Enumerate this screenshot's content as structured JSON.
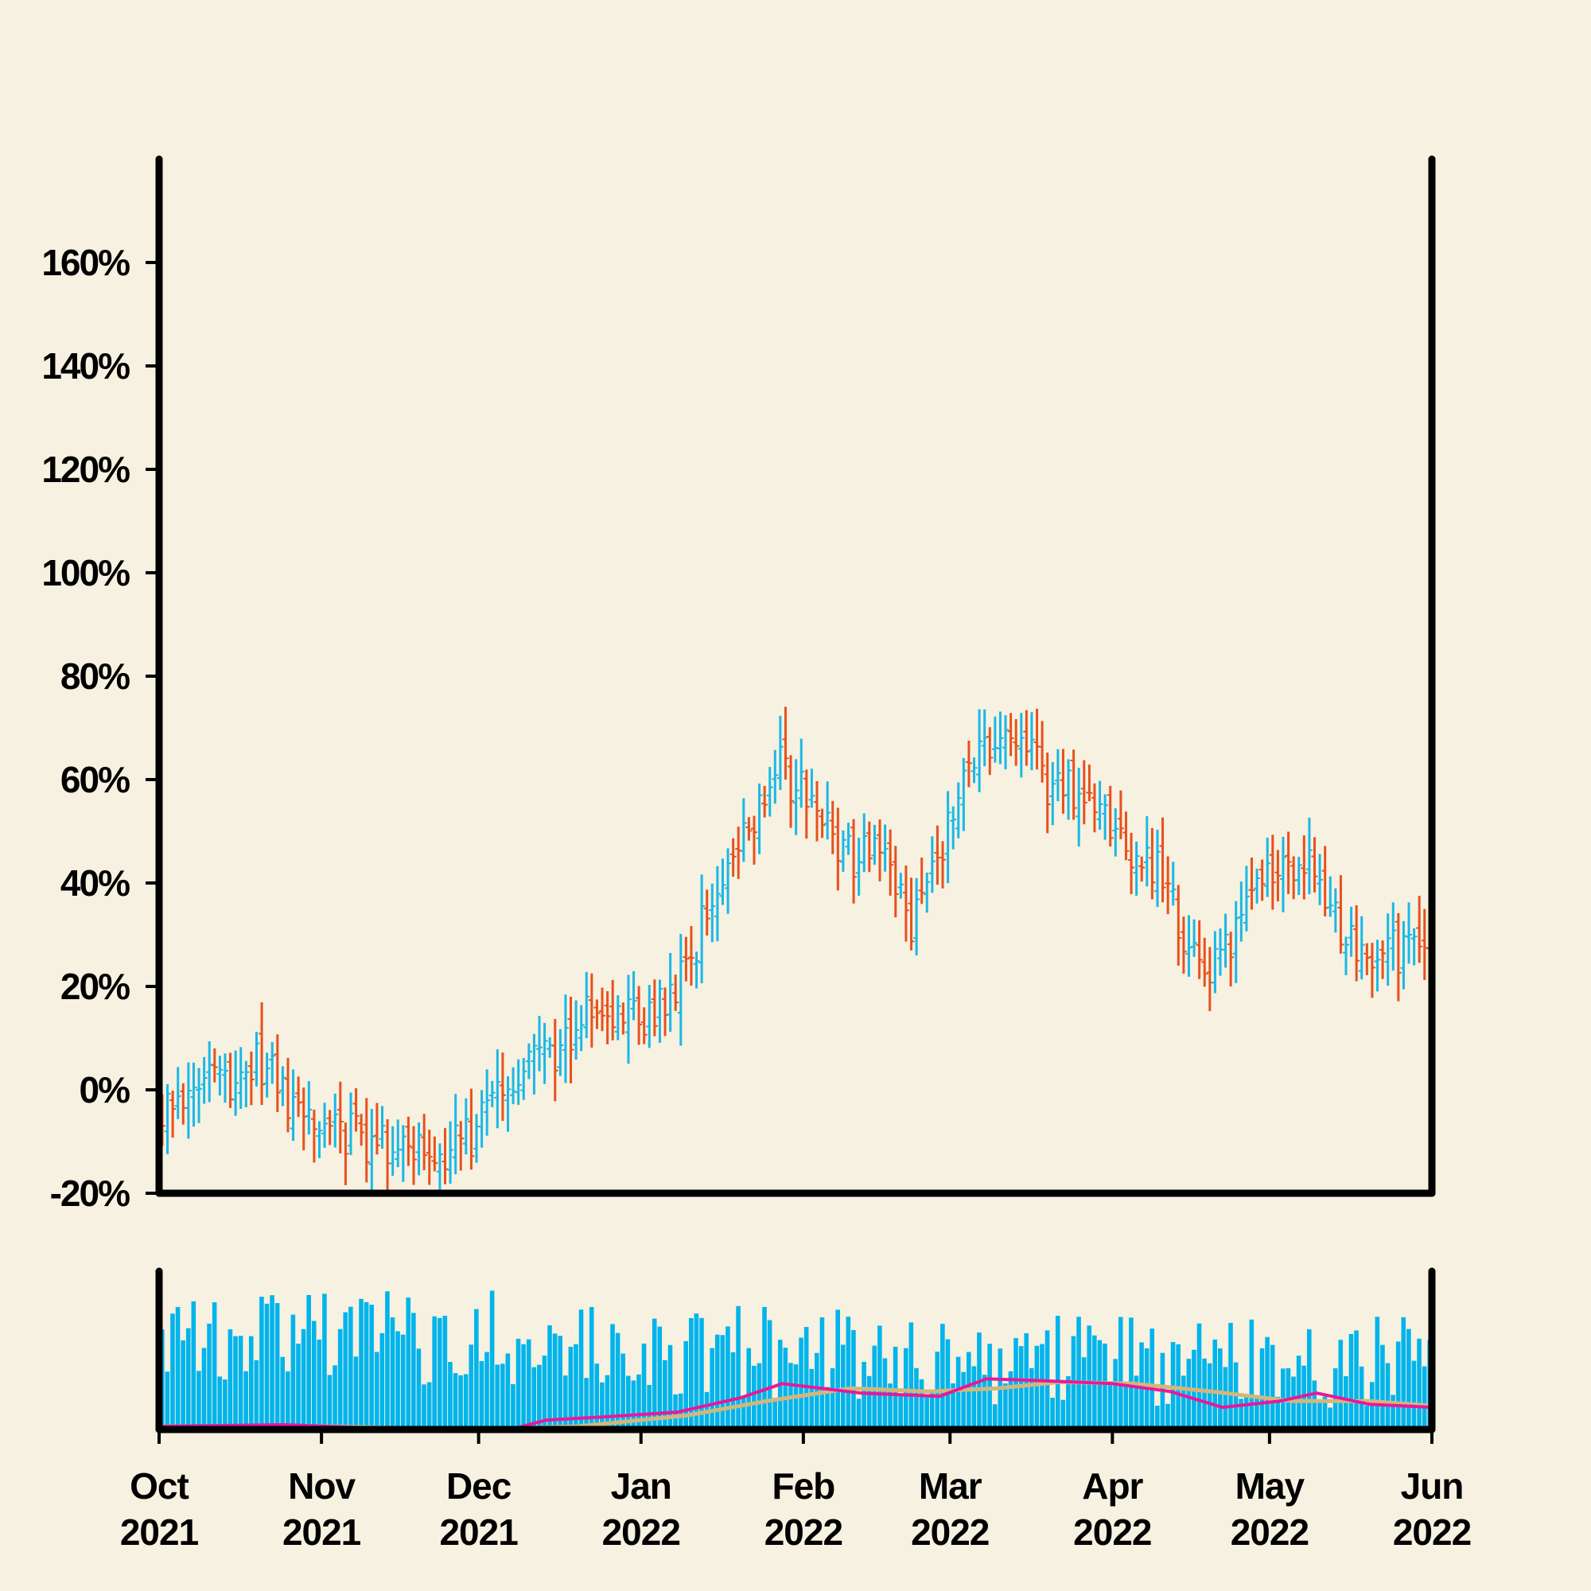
{
  "chart_data": {
    "type": "ohlc",
    "title": "",
    "xlabel": "",
    "ylabel": "",
    "x_range": [
      "2021-10-01",
      "2022-06-01"
    ],
    "ylim": [
      -20,
      180
    ],
    "y_ticks": [
      "-20%",
      "0%",
      "20%",
      "40%",
      "60%",
      "80%",
      "100%",
      "120%",
      "140%",
      "160%"
    ],
    "x_ticks": [
      {
        "date": "2021-10-01",
        "month": "Oct",
        "year": "2021"
      },
      {
        "date": "2021-11-01",
        "month": "Nov",
        "year": "2021"
      },
      {
        "date": "2021-12-01",
        "month": "Dec",
        "year": "2021"
      },
      {
        "date": "2022-01-01",
        "month": "Jan",
        "year": "2022"
      },
      {
        "date": "2022-02-01",
        "month": "Feb",
        "year": "2022"
      },
      {
        "date": "2022-03-01",
        "month": "Mar",
        "year": "2022"
      },
      {
        "date": "2022-04-01",
        "month": "Apr",
        "year": "2022"
      },
      {
        "date": "2022-05-01",
        "month": "May",
        "year": "2022"
      },
      {
        "date": "2022-06-01",
        "month": "Jun",
        "year": "2022"
      }
    ],
    "grid": false,
    "up_color": "#1ab8e6",
    "down_color": "#e8501e",
    "volume_color": "#00b4ec",
    "ma_fast_color": "#e8189a",
    "ma_slow_color": "#d2b77c",
    "price_anchors": [
      {
        "date": "2021-10-01",
        "close": -3
      },
      {
        "date": "2021-10-20",
        "close": 5
      },
      {
        "date": "2021-10-28",
        "close": -6
      },
      {
        "date": "2021-11-10",
        "close": -10
      },
      {
        "date": "2021-11-25",
        "close": -12
      },
      {
        "date": "2021-12-02",
        "close": -6
      },
      {
        "date": "2021-12-08",
        "close": 4
      },
      {
        "date": "2021-12-15",
        "close": 6
      },
      {
        "date": "2021-12-22",
        "close": 16
      },
      {
        "date": "2022-01-01",
        "close": 14
      },
      {
        "date": "2022-01-08",
        "close": 22
      },
      {
        "date": "2022-01-15",
        "close": 38
      },
      {
        "date": "2022-01-22",
        "close": 52
      },
      {
        "date": "2022-01-27",
        "close": 62
      },
      {
        "date": "2022-02-03",
        "close": 55
      },
      {
        "date": "2022-02-10",
        "close": 44
      },
      {
        "date": "2022-02-16",
        "close": 46
      },
      {
        "date": "2022-02-21",
        "close": 32
      },
      {
        "date": "2022-02-27",
        "close": 48
      },
      {
        "date": "2022-03-05",
        "close": 65
      },
      {
        "date": "2022-03-10",
        "close": 68
      },
      {
        "date": "2022-03-16",
        "close": 64
      },
      {
        "date": "2022-03-20",
        "close": 57
      },
      {
        "date": "2022-03-26",
        "close": 58
      },
      {
        "date": "2022-04-01",
        "close": 50
      },
      {
        "date": "2022-04-10",
        "close": 42
      },
      {
        "date": "2022-04-17",
        "close": 22
      },
      {
        "date": "2022-04-23",
        "close": 28
      },
      {
        "date": "2022-05-01",
        "close": 42
      },
      {
        "date": "2022-05-08",
        "close": 42
      },
      {
        "date": "2022-05-13",
        "close": 34
      },
      {
        "date": "2022-05-18",
        "close": 25
      },
      {
        "date": "2022-05-24",
        "close": 27
      },
      {
        "date": "2022-06-01",
        "close": 28
      }
    ],
    "moving_average_fast": [
      {
        "date": "2021-10-01",
        "value": 0.02
      },
      {
        "date": "2021-10-25",
        "value": 0.03
      },
      {
        "date": "2021-11-10",
        "value": 0.01
      },
      {
        "date": "2021-12-07",
        "value": 0.0
      },
      {
        "date": "2021-12-14",
        "value": 0.06
      },
      {
        "date": "2021-12-25",
        "value": 0.08
      },
      {
        "date": "2022-01-08",
        "value": 0.11
      },
      {
        "date": "2022-01-20",
        "value": 0.2
      },
      {
        "date": "2022-01-28",
        "value": 0.29
      },
      {
        "date": "2022-02-12",
        "value": 0.23
      },
      {
        "date": "2022-02-27",
        "value": 0.21
      },
      {
        "date": "2022-03-08",
        "value": 0.32
      },
      {
        "date": "2022-03-17",
        "value": 0.31
      },
      {
        "date": "2022-04-01",
        "value": 0.29
      },
      {
        "date": "2022-04-12",
        "value": 0.24
      },
      {
        "date": "2022-04-22",
        "value": 0.14
      },
      {
        "date": "2022-05-03",
        "value": 0.18
      },
      {
        "date": "2022-05-10",
        "value": 0.23
      },
      {
        "date": "2022-05-20",
        "value": 0.16
      },
      {
        "date": "2022-06-01",
        "value": 0.14
      }
    ],
    "moving_average_slow": [
      {
        "date": "2021-10-01",
        "value": 0.02
      },
      {
        "date": "2021-11-01",
        "value": 0.02
      },
      {
        "date": "2021-12-01",
        "value": 0.0
      },
      {
        "date": "2021-12-20",
        "value": 0.02
      },
      {
        "date": "2022-01-10",
        "value": 0.09
      },
      {
        "date": "2022-01-25",
        "value": 0.18
      },
      {
        "date": "2022-02-10",
        "value": 0.26
      },
      {
        "date": "2022-02-25",
        "value": 0.24
      },
      {
        "date": "2022-03-10",
        "value": 0.26
      },
      {
        "date": "2022-03-22",
        "value": 0.3
      },
      {
        "date": "2022-04-05",
        "value": 0.29
      },
      {
        "date": "2022-04-20",
        "value": 0.24
      },
      {
        "date": "2022-05-05",
        "value": 0.18
      },
      {
        "date": "2022-05-20",
        "value": 0.18
      },
      {
        "date": "2022-06-01",
        "value": 0.15
      }
    ]
  }
}
